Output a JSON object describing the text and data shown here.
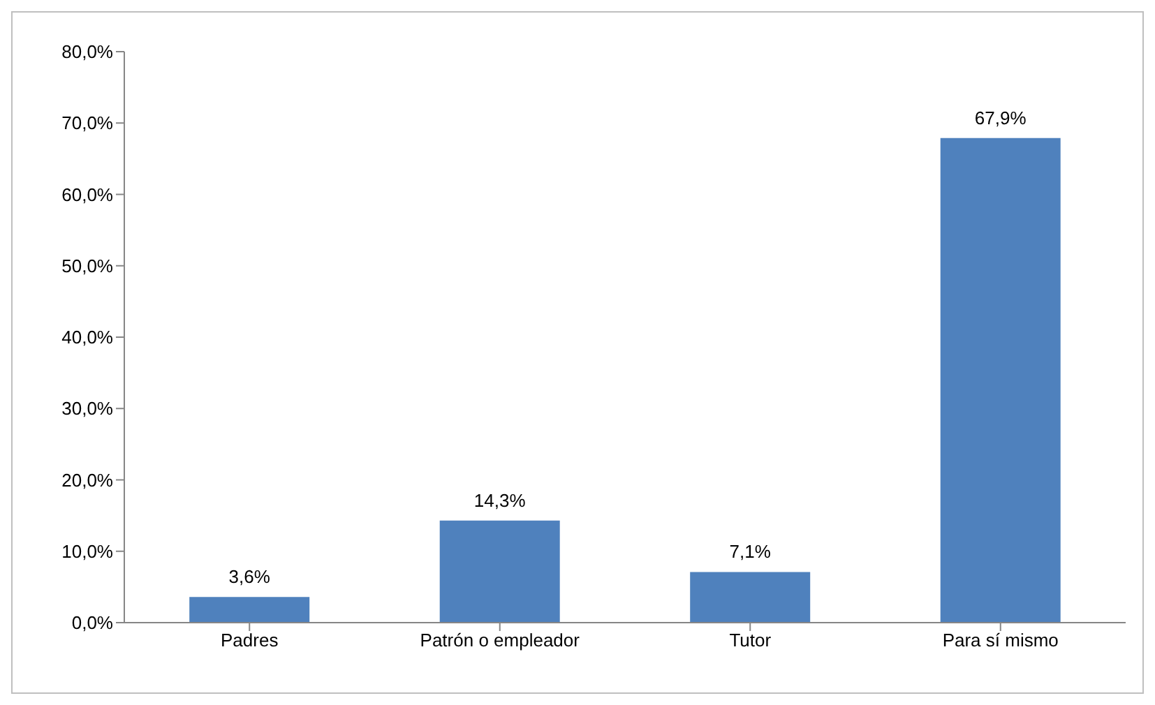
{
  "chart_data": {
    "type": "bar",
    "categories": [
      "Padres",
      "Patrón o empleador",
      "Tutor",
      "Para sí mismo"
    ],
    "values": [
      3.6,
      14.3,
      7.1,
      67.9
    ],
    "value_labels": [
      "3,6%",
      "14,3%",
      "7,1%",
      "67,9%"
    ],
    "color": "#4f81bd",
    "ylim": [
      0,
      80
    ],
    "yticks": [
      {
        "value": 0,
        "label": "0,0%"
      },
      {
        "value": 10,
        "label": "10,0%"
      },
      {
        "value": 20,
        "label": "20,0%"
      },
      {
        "value": 30,
        "label": "30,0%"
      },
      {
        "value": 40,
        "label": "40,0%"
      },
      {
        "value": 50,
        "label": "50,0%"
      },
      {
        "value": 60,
        "label": "60,0%"
      },
      {
        "value": 70,
        "label": "70,0%"
      },
      {
        "value": 80,
        "label": "80,0%"
      }
    ],
    "grid": false,
    "legend": false
  }
}
